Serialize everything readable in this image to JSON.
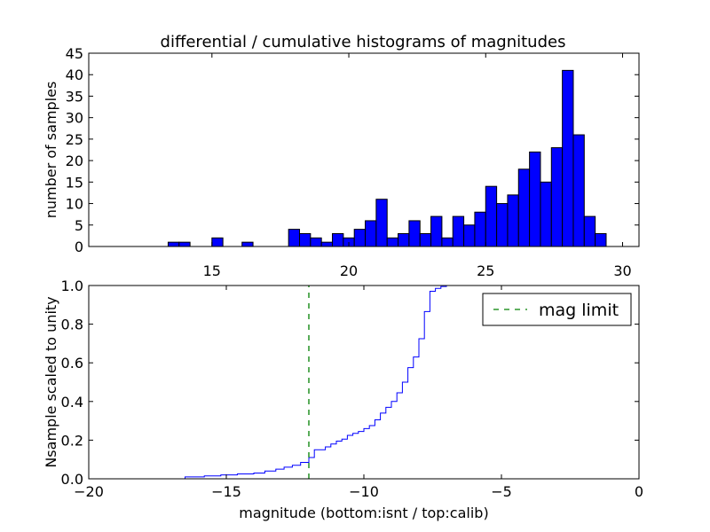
{
  "chart_data": [
    {
      "type": "bar",
      "title": "differential / cumulative histograms of magnitudes",
      "xlabel": "",
      "ylabel": "number of samples",
      "xlim": [
        10.5,
        30.6
      ],
      "ylim": [
        0,
        45
      ],
      "xticks": [
        "15",
        "20",
        "25",
        "30"
      ],
      "yticks": [
        "0",
        "5",
        "10",
        "15",
        "20",
        "25",
        "30",
        "35",
        "40",
        "45"
      ],
      "bar_color": "#0000ff",
      "bins": [
        {
          "x0": 13.4,
          "x1": 13.8,
          "value": 1
        },
        {
          "x0": 13.8,
          "x1": 14.2,
          "value": 1
        },
        {
          "x0": 15.0,
          "x1": 15.4,
          "value": 2
        },
        {
          "x0": 16.1,
          "x1": 16.5,
          "value": 1
        },
        {
          "x0": 17.8,
          "x1": 18.2,
          "value": 4
        },
        {
          "x0": 18.2,
          "x1": 18.6,
          "value": 3
        },
        {
          "x0": 18.6,
          "x1": 19.0,
          "value": 2
        },
        {
          "x0": 19.0,
          "x1": 19.4,
          "value": 1
        },
        {
          "x0": 19.4,
          "x1": 19.8,
          "value": 3
        },
        {
          "x0": 19.8,
          "x1": 20.2,
          "value": 2
        },
        {
          "x0": 20.2,
          "x1": 20.6,
          "value": 4
        },
        {
          "x0": 20.6,
          "x1": 21.0,
          "value": 6
        },
        {
          "x0": 21.0,
          "x1": 21.4,
          "value": 11
        },
        {
          "x0": 21.4,
          "x1": 21.8,
          "value": 2
        },
        {
          "x0": 21.8,
          "x1": 22.2,
          "value": 3
        },
        {
          "x0": 22.2,
          "x1": 22.6,
          "value": 6
        },
        {
          "x0": 22.6,
          "x1": 23.0,
          "value": 3
        },
        {
          "x0": 23.0,
          "x1": 23.4,
          "value": 7
        },
        {
          "x0": 23.4,
          "x1": 23.8,
          "value": 2
        },
        {
          "x0": 23.8,
          "x1": 24.2,
          "value": 7
        },
        {
          "x0": 24.2,
          "x1": 24.6,
          "value": 5
        },
        {
          "x0": 24.6,
          "x1": 25.0,
          "value": 8
        },
        {
          "x0": 25.0,
          "x1": 25.4,
          "value": 14
        },
        {
          "x0": 25.4,
          "x1": 25.8,
          "value": 10
        },
        {
          "x0": 25.8,
          "x1": 26.2,
          "value": 12
        },
        {
          "x0": 26.2,
          "x1": 26.6,
          "value": 18
        },
        {
          "x0": 26.6,
          "x1": 27.0,
          "value": 22
        },
        {
          "x0": 27.0,
          "x1": 27.4,
          "value": 15
        },
        {
          "x0": 27.4,
          "x1": 27.8,
          "value": 23
        },
        {
          "x0": 27.8,
          "x1": 28.2,
          "value": 41
        },
        {
          "x0": 28.2,
          "x1": 28.6,
          "value": 26
        },
        {
          "x0": 28.6,
          "x1": 29.0,
          "value": 7
        },
        {
          "x0": 29.0,
          "x1": 29.4,
          "value": 3
        }
      ]
    },
    {
      "type": "line",
      "xlabel": "magnitude (bottom:isnt / top:calib)",
      "ylabel": "Nsample scaled to unity",
      "xlim": [
        -20,
        0
      ],
      "ylim": [
        0,
        1
      ],
      "xticks": [
        "−20",
        "−15",
        "−10",
        "−5",
        "0"
      ],
      "yticks": [
        "0.0",
        "0.2",
        "0.4",
        "0.6",
        "0.8",
        "1.0"
      ],
      "legend_position": "top-right",
      "series": [
        {
          "style": "step",
          "color": "#0000ff",
          "x": [
            -20.0,
            -16.5,
            -15.8,
            -15.2,
            -14.6,
            -14.0,
            -13.6,
            -13.2,
            -12.9,
            -12.6,
            -12.3,
            -12.0,
            -11.8,
            -11.4,
            -11.2,
            -11.0,
            -10.8,
            -10.6,
            -10.4,
            -10.2,
            -10.0,
            -9.8,
            -9.6,
            -9.4,
            -9.2,
            -9.0,
            -8.8,
            -8.6,
            -8.4,
            -8.2,
            -8.0,
            -7.8,
            -7.6,
            -7.4,
            -7.2,
            -7.0,
            -6.8,
            -6.6
          ],
          "y": [
            0.0,
            0.01,
            0.015,
            0.02,
            0.025,
            0.03,
            0.04,
            0.05,
            0.06,
            0.07,
            0.085,
            0.11,
            0.15,
            0.165,
            0.18,
            0.195,
            0.205,
            0.225,
            0.235,
            0.245,
            0.26,
            0.275,
            0.305,
            0.34,
            0.37,
            0.4,
            0.445,
            0.5,
            0.575,
            0.63,
            0.725,
            0.865,
            0.97,
            0.985,
            0.995,
            1.0,
            1.0,
            1.0
          ]
        },
        {
          "name": "mag limit",
          "style": "dashed",
          "color": "#008000",
          "x": [
            -12.0,
            -12.0
          ],
          "y": [
            0.0,
            1.0
          ]
        }
      ]
    }
  ]
}
